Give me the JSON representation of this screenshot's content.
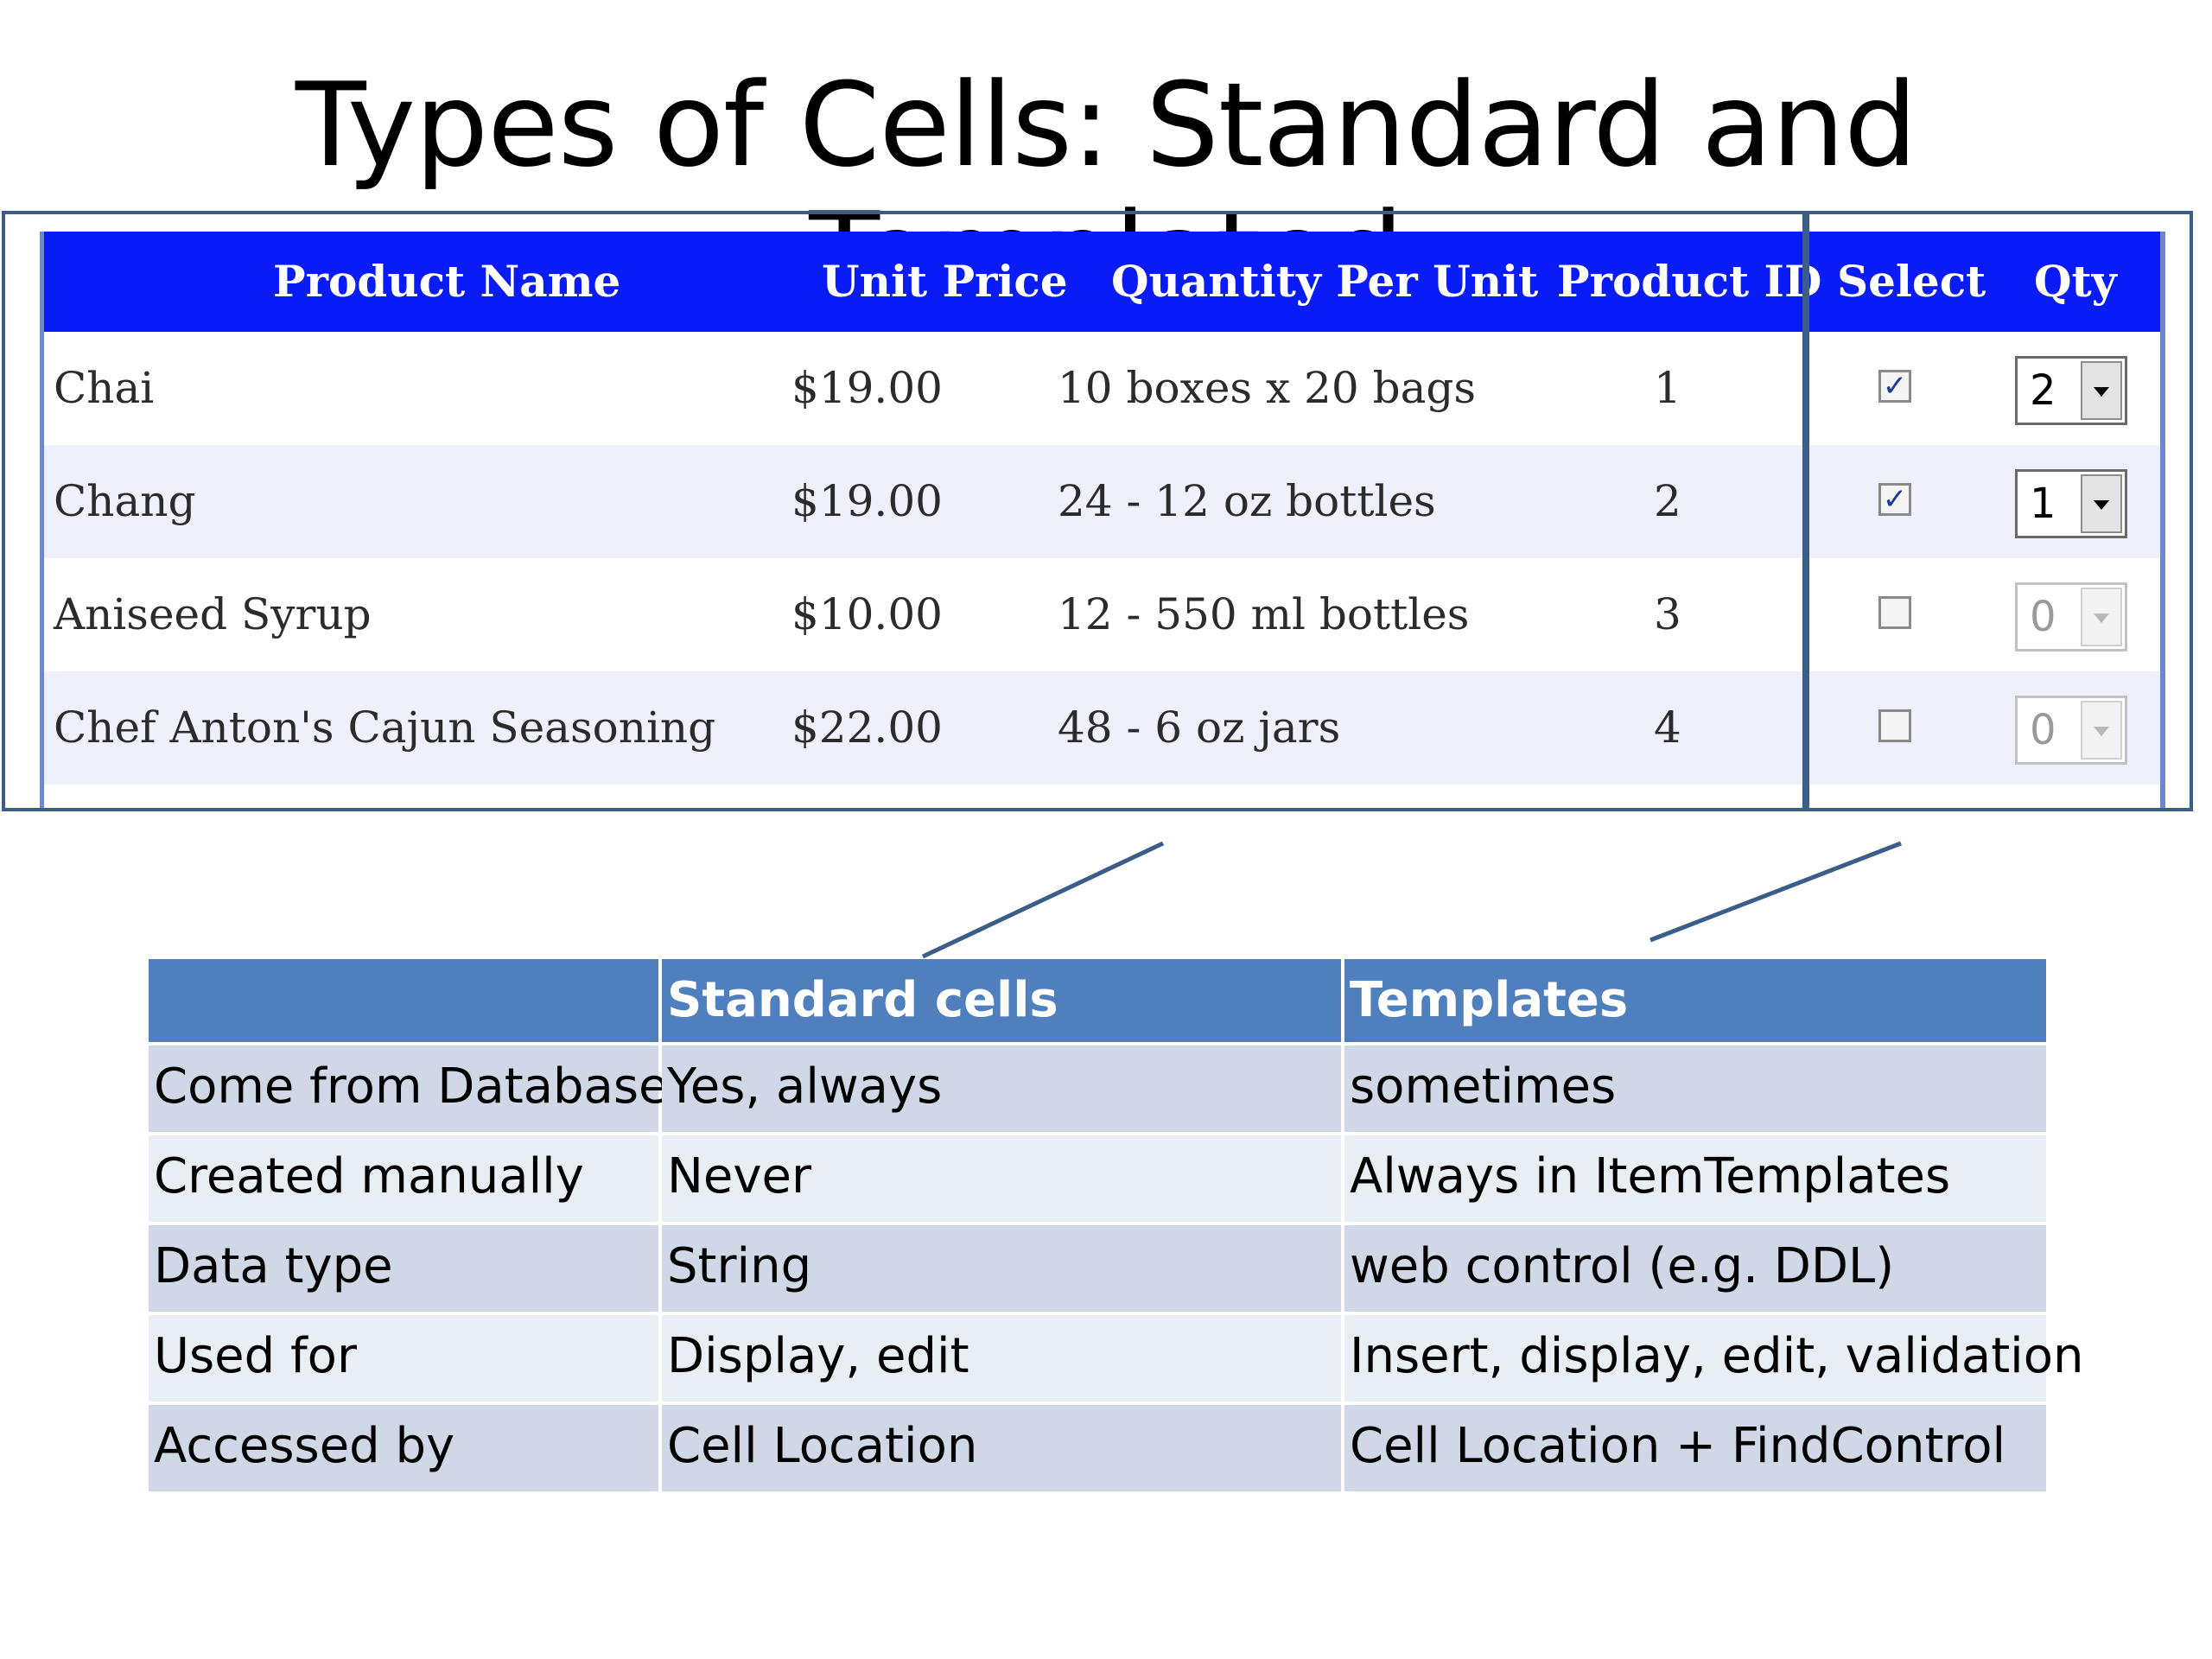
{
  "slide": {
    "title": "Types of Cells: Standard and Templated"
  },
  "grid": {
    "headers": {
      "product_name": "Product Name",
      "unit_price": "Unit Price",
      "quantity_per_unit": "Quantity Per Unit",
      "product_id": "Product ID",
      "select": "Select",
      "qty": "Qty"
    },
    "rows": [
      {
        "name": "Chai",
        "price": "$19.00",
        "qpu": "10 boxes x 20 bags",
        "id": "1",
        "select_mark": "✓",
        "qty": "2"
      },
      {
        "name": "Chang",
        "price": "$19.00",
        "qpu": "24 - 12 oz bottles",
        "id": "2",
        "select_mark": "✓",
        "qty": "1"
      },
      {
        "name": "Aniseed Syrup",
        "price": "$10.00",
        "qpu": "12 - 550 ml bottles",
        "id": "3",
        "select_mark": "",
        "qty": "0"
      },
      {
        "name": "Chef Anton's Cajun Seasoning",
        "price": "$22.00",
        "qpu": "48 - 6 oz jars",
        "id": "4",
        "select_mark": "",
        "qty": "0"
      }
    ],
    "colors": {
      "header_bg": "#0a1cf5",
      "frame": "#3b5d8a"
    }
  },
  "comparison": {
    "headers": [
      "",
      "Standard cells",
      "Templates"
    ],
    "rows": [
      [
        "Come from Database",
        "Yes, always",
        "sometimes"
      ],
      [
        "Created manually",
        "Never",
        "Always in ItemTemplates"
      ],
      [
        "Data type",
        "String",
        "web control (e.g. DDL)"
      ],
      [
        "Used for",
        "Display, edit",
        "Insert, display, edit, validation"
      ],
      [
        "Accessed by",
        "Cell Location",
        "Cell Location + FindControl"
      ]
    ],
    "colors": {
      "header_bg": "#4f80bd",
      "row_dark": "#d0d8e8",
      "row_light": "#e9edf4"
    }
  }
}
